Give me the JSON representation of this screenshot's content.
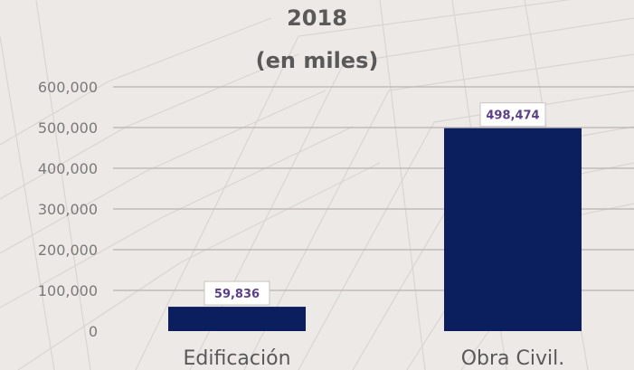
{
  "chart_data": {
    "type": "bar",
    "title": "2018",
    "subtitle": "(en miles)",
    "categories": [
      "Edificación",
      "Obra Civil."
    ],
    "values": [
      59836,
      498474
    ],
    "data_labels": [
      "59,836",
      "498,474"
    ],
    "ylim": [
      0,
      600000
    ],
    "yticks": [
      0,
      100000,
      200000,
      300000,
      400000,
      500000,
      600000
    ],
    "ytick_labels": [
      "0",
      "100,000",
      "200,000",
      "300,000",
      "400,000",
      "500,000",
      "600,000"
    ],
    "xlabel": "",
    "ylabel": "",
    "grid": true,
    "legend": "none",
    "bar_color": "#0b1f5e",
    "label_text_color": "#5b3f8c"
  }
}
